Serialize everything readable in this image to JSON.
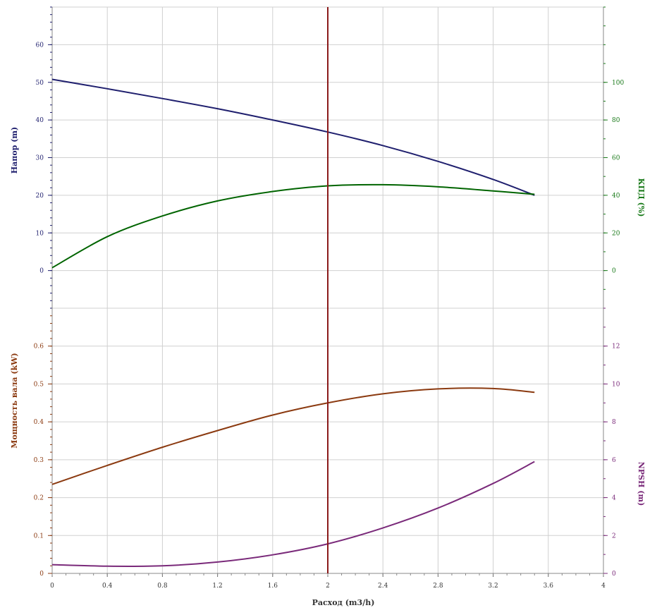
{
  "chart_data": {
    "type": "line",
    "xlabel": "Расход (m3/h)",
    "xlim": [
      0,
      4
    ],
    "x_ticks": [
      "0",
      "0.4",
      "0.8",
      "1.2",
      "1.6",
      "2",
      "2.4",
      "2.8",
      "3.2",
      "3.6",
      "4"
    ],
    "x_tick_values": [
      0,
      0.4,
      0.8,
      1.2,
      1.6,
      2,
      2.4,
      2.8,
      3.2,
      3.6,
      4
    ],
    "marker_x": 2,
    "grid": true,
    "panels": [
      {
        "id": "top",
        "left_axis": {
          "label": "Напор (m)",
          "color": "#1f1f6e",
          "range": [
            -10,
            70
          ],
          "ticks": [
            "0",
            "10",
            "20",
            "30",
            "40",
            "50",
            "60"
          ],
          "tick_values": [
            0,
            10,
            20,
            30,
            40,
            50,
            60
          ]
        },
        "right_axis": {
          "label": "КПД (%)",
          "color": "#1a7a1a",
          "range": [
            -20,
            140
          ],
          "ticks": [
            "0",
            "20",
            "40",
            "60",
            "80",
            "100"
          ],
          "tick_values": [
            0,
            20,
            40,
            60,
            80,
            100
          ]
        },
        "series": [
          {
            "name": "Напор",
            "axis": "left",
            "color": "#1f1f6e",
            "x": [
              0,
              0.4,
              0.8,
              1.2,
              1.6,
              2.0,
              2.4,
              2.8,
              3.2,
              3.5
            ],
            "y": [
              50.8,
              48.3,
              45.7,
              43.0,
              40.0,
              36.8,
              33.2,
              29.0,
              24.2,
              20.0
            ]
          },
          {
            "name": "КПД",
            "axis": "right",
            "color": "#006400",
            "x": [
              0,
              0.4,
              0.8,
              1.2,
              1.6,
              2.0,
              2.4,
              2.8,
              3.2,
              3.5
            ],
            "y": [
              1.5,
              18.0,
              29.0,
              37.0,
              42.0,
              45.0,
              45.6,
              44.5,
              42.3,
              40.5
            ]
          }
        ]
      },
      {
        "id": "bottom",
        "left_axis": {
          "label": "Мощность вала (kW)",
          "color": "#8b3a10",
          "range": [
            0,
            0.7
          ],
          "ticks": [
            "0",
            "0.1",
            "0.2",
            "0.3",
            "0.4",
            "0.5",
            "0.6"
          ],
          "tick_values": [
            0,
            0.1,
            0.2,
            0.3,
            0.4,
            0.5,
            0.6
          ]
        },
        "right_axis": {
          "label": "NPSH (m)",
          "color": "#7a2a7a",
          "range": [
            0,
            14
          ],
          "ticks": [
            "0",
            "2",
            "4",
            "6",
            "8",
            "10",
            "12"
          ],
          "tick_values": [
            0,
            2,
            4,
            6,
            8,
            10,
            12
          ]
        },
        "series": [
          {
            "name": "Мощность вала",
            "axis": "left",
            "color": "#8b3a10",
            "x": [
              0,
              0.4,
              0.8,
              1.2,
              1.6,
              2.0,
              2.4,
              2.8,
              3.2,
              3.5
            ],
            "y": [
              0.235,
              0.285,
              0.333,
              0.377,
              0.418,
              0.45,
              0.474,
              0.487,
              0.488,
              0.478
            ]
          },
          {
            "name": "NPSH",
            "axis": "right",
            "color": "#7a2a7a",
            "x": [
              0,
              0.4,
              0.8,
              1.2,
              1.6,
              2.0,
              2.4,
              2.8,
              3.2,
              3.5
            ],
            "y": [
              0.46,
              0.38,
              0.4,
              0.6,
              0.98,
              1.56,
              2.4,
              3.45,
              4.75,
              5.9
            ]
          }
        ]
      }
    ]
  }
}
